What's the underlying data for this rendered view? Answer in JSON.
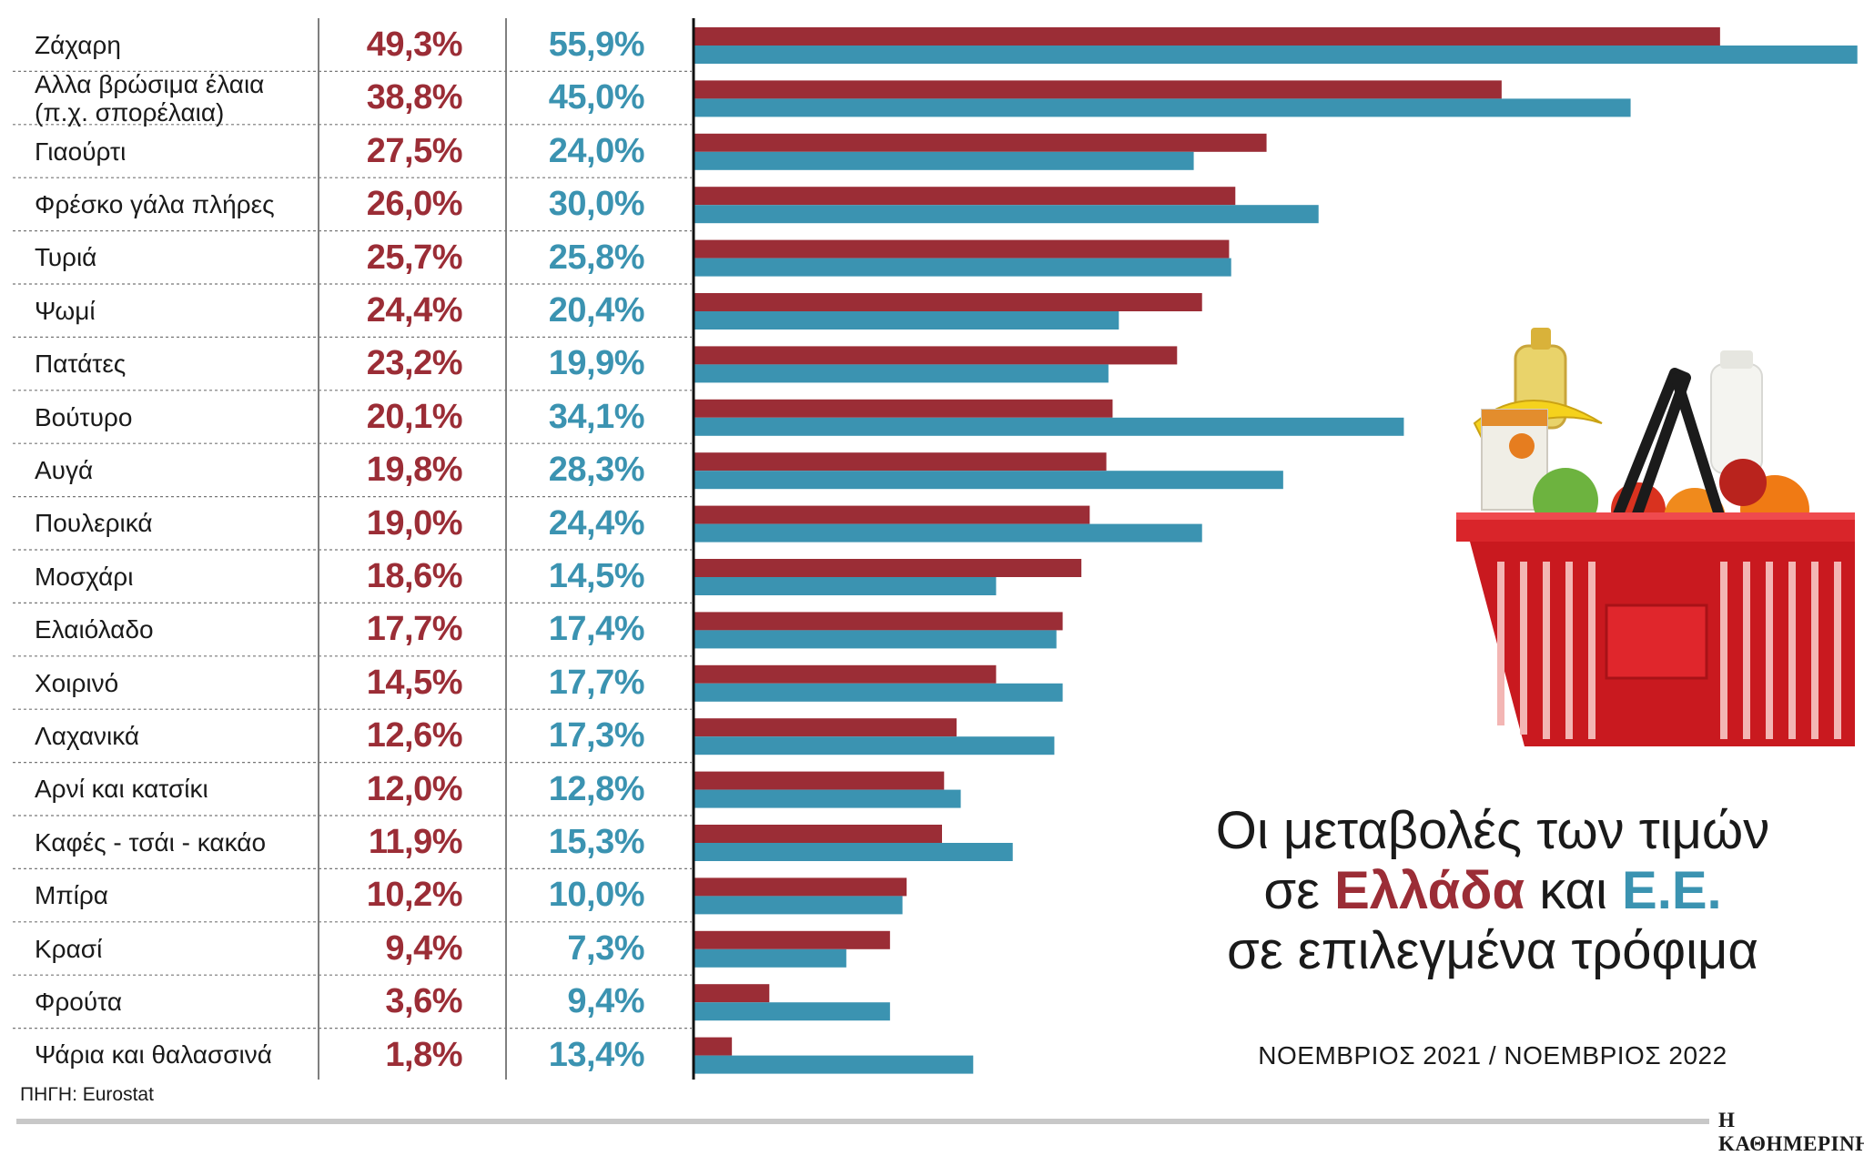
{
  "title": {
    "line1": "Οι μεταβολές των τιμών",
    "line2_pre": "σε ",
    "line2_gr": "Ελλάδα",
    "line2_mid": " και ",
    "line2_eu": "Ε.Ε.",
    "line3": "σε επιλεγμένα τρόφιμα"
  },
  "subtitle": "ΝΟΕΜΒΡΙΟΣ 2021 / ΝΟΕΜΒΡΙΟΣ 2022",
  "source": "ΠΗΓΗ: Eurostat",
  "brand": "Η ΚΑΘΗΜΕΡΙΝΗ",
  "colors": {
    "greece": "#9b2d36",
    "eu": "#3b93b1"
  },
  "chart_data": {
    "type": "bar",
    "orientation": "horizontal",
    "categories": [
      [
        "Ζάχαρη"
      ],
      [
        "Αλλα βρώσιμα έλαια",
        "(π.χ. σπορέλαια)"
      ],
      [
        "Γιαούρτι"
      ],
      [
        "Φρέσκο γάλα πλήρες"
      ],
      [
        "Τυριά"
      ],
      [
        "Ψωμί"
      ],
      [
        "Πατάτες"
      ],
      [
        "Βούτυρο"
      ],
      [
        "Αυγά"
      ],
      [
        "Πουλερικά"
      ],
      [
        "Μοσχάρι"
      ],
      [
        "Ελαιόλαδο"
      ],
      [
        "Χοιρινό"
      ],
      [
        "Λαχανικά"
      ],
      [
        "Αρνί και κατσίκι"
      ],
      [
        "Καφές - τσάι - κακάο"
      ],
      [
        "Μπίρα"
      ],
      [
        "Κρασί"
      ],
      [
        "Φρούτα"
      ],
      [
        "Ψάρια και θαλασσινά"
      ]
    ],
    "series": [
      {
        "values": [
          49.3,
          38.8,
          27.5,
          26.0,
          25.7,
          24.4,
          23.2,
          20.1,
          19.8,
          19.0,
          18.6,
          17.7,
          14.5,
          12.6,
          12.0,
          11.9,
          10.2,
          9.4,
          3.6,
          1.8
        ],
        "labels": [
          "49,3%",
          "38,8%",
          "27,5%",
          "26,0%",
          "25,7%",
          "24,4%",
          "23,2%",
          "20,1%",
          "19,8%",
          "19,0%",
          "18,6%",
          "17,7%",
          "14,5%",
          "12,6%",
          "12,0%",
          "11,9%",
          "10,2%",
          "9,4%",
          "3,6%",
          "1,8%"
        ]
      },
      {
        "values": [
          55.9,
          45.0,
          24.0,
          30.0,
          25.8,
          20.4,
          19.9,
          34.1,
          28.3,
          24.4,
          14.5,
          17.4,
          17.7,
          17.3,
          12.8,
          15.3,
          10.0,
          7.3,
          9.4,
          13.4
        ],
        "labels": [
          "55,9%",
          "45,0%",
          "24,0%",
          "30,0%",
          "25,8%",
          "20,4%",
          "19,9%",
          "34,1%",
          "28,3%",
          "24,4%",
          "14,5%",
          "17,4%",
          "17,7%",
          "17,3%",
          "12,8%",
          "15,3%",
          "10,0%",
          "7,3%",
          "9,4%",
          "13,4%"
        ]
      }
    ],
    "xlim": [
      0,
      56
    ],
    "grid": false,
    "legend": "none"
  }
}
